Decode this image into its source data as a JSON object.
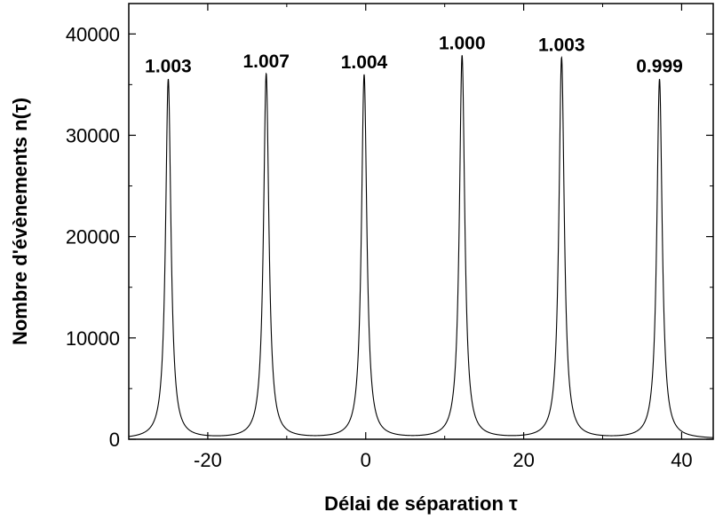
{
  "chart_data": {
    "type": "line",
    "xlabel": "Délai de séparation τ",
    "ylabel": "Nombre d'évènements n(τ)",
    "xlim": [
      -30,
      44
    ],
    "ylim": [
      0,
      43000
    ],
    "x_ticks": [
      -20,
      0,
      20,
      40
    ],
    "x_tick_labels": [
      "-20",
      "0",
      "20",
      "40"
    ],
    "x_minor_ticks": [
      -30,
      -10,
      10,
      30
    ],
    "y_ticks": [
      0,
      10000,
      20000,
      30000,
      40000
    ],
    "y_tick_labels": [
      "0",
      "10000",
      "20000",
      "30000",
      "40000"
    ],
    "y_minor_ticks": [
      5000,
      15000,
      25000,
      35000
    ],
    "grid": false,
    "legend": "none",
    "series": [
      {
        "peaks": [
          {
            "x": -25.0,
            "height": 35500,
            "label": "1.003"
          },
          {
            "x": -12.6,
            "height": 36000,
            "label": "1.007"
          },
          {
            "x": -0.2,
            "height": 35900,
            "label": "1.004"
          },
          {
            "x": 12.2,
            "height": 37800,
            "label": "1.000"
          },
          {
            "x": 24.8,
            "height": 37600,
            "label": "1.003"
          },
          {
            "x": 37.2,
            "height": 35500,
            "label": "0.999"
          }
        ],
        "baseline": 0,
        "color": "#000000"
      }
    ]
  }
}
